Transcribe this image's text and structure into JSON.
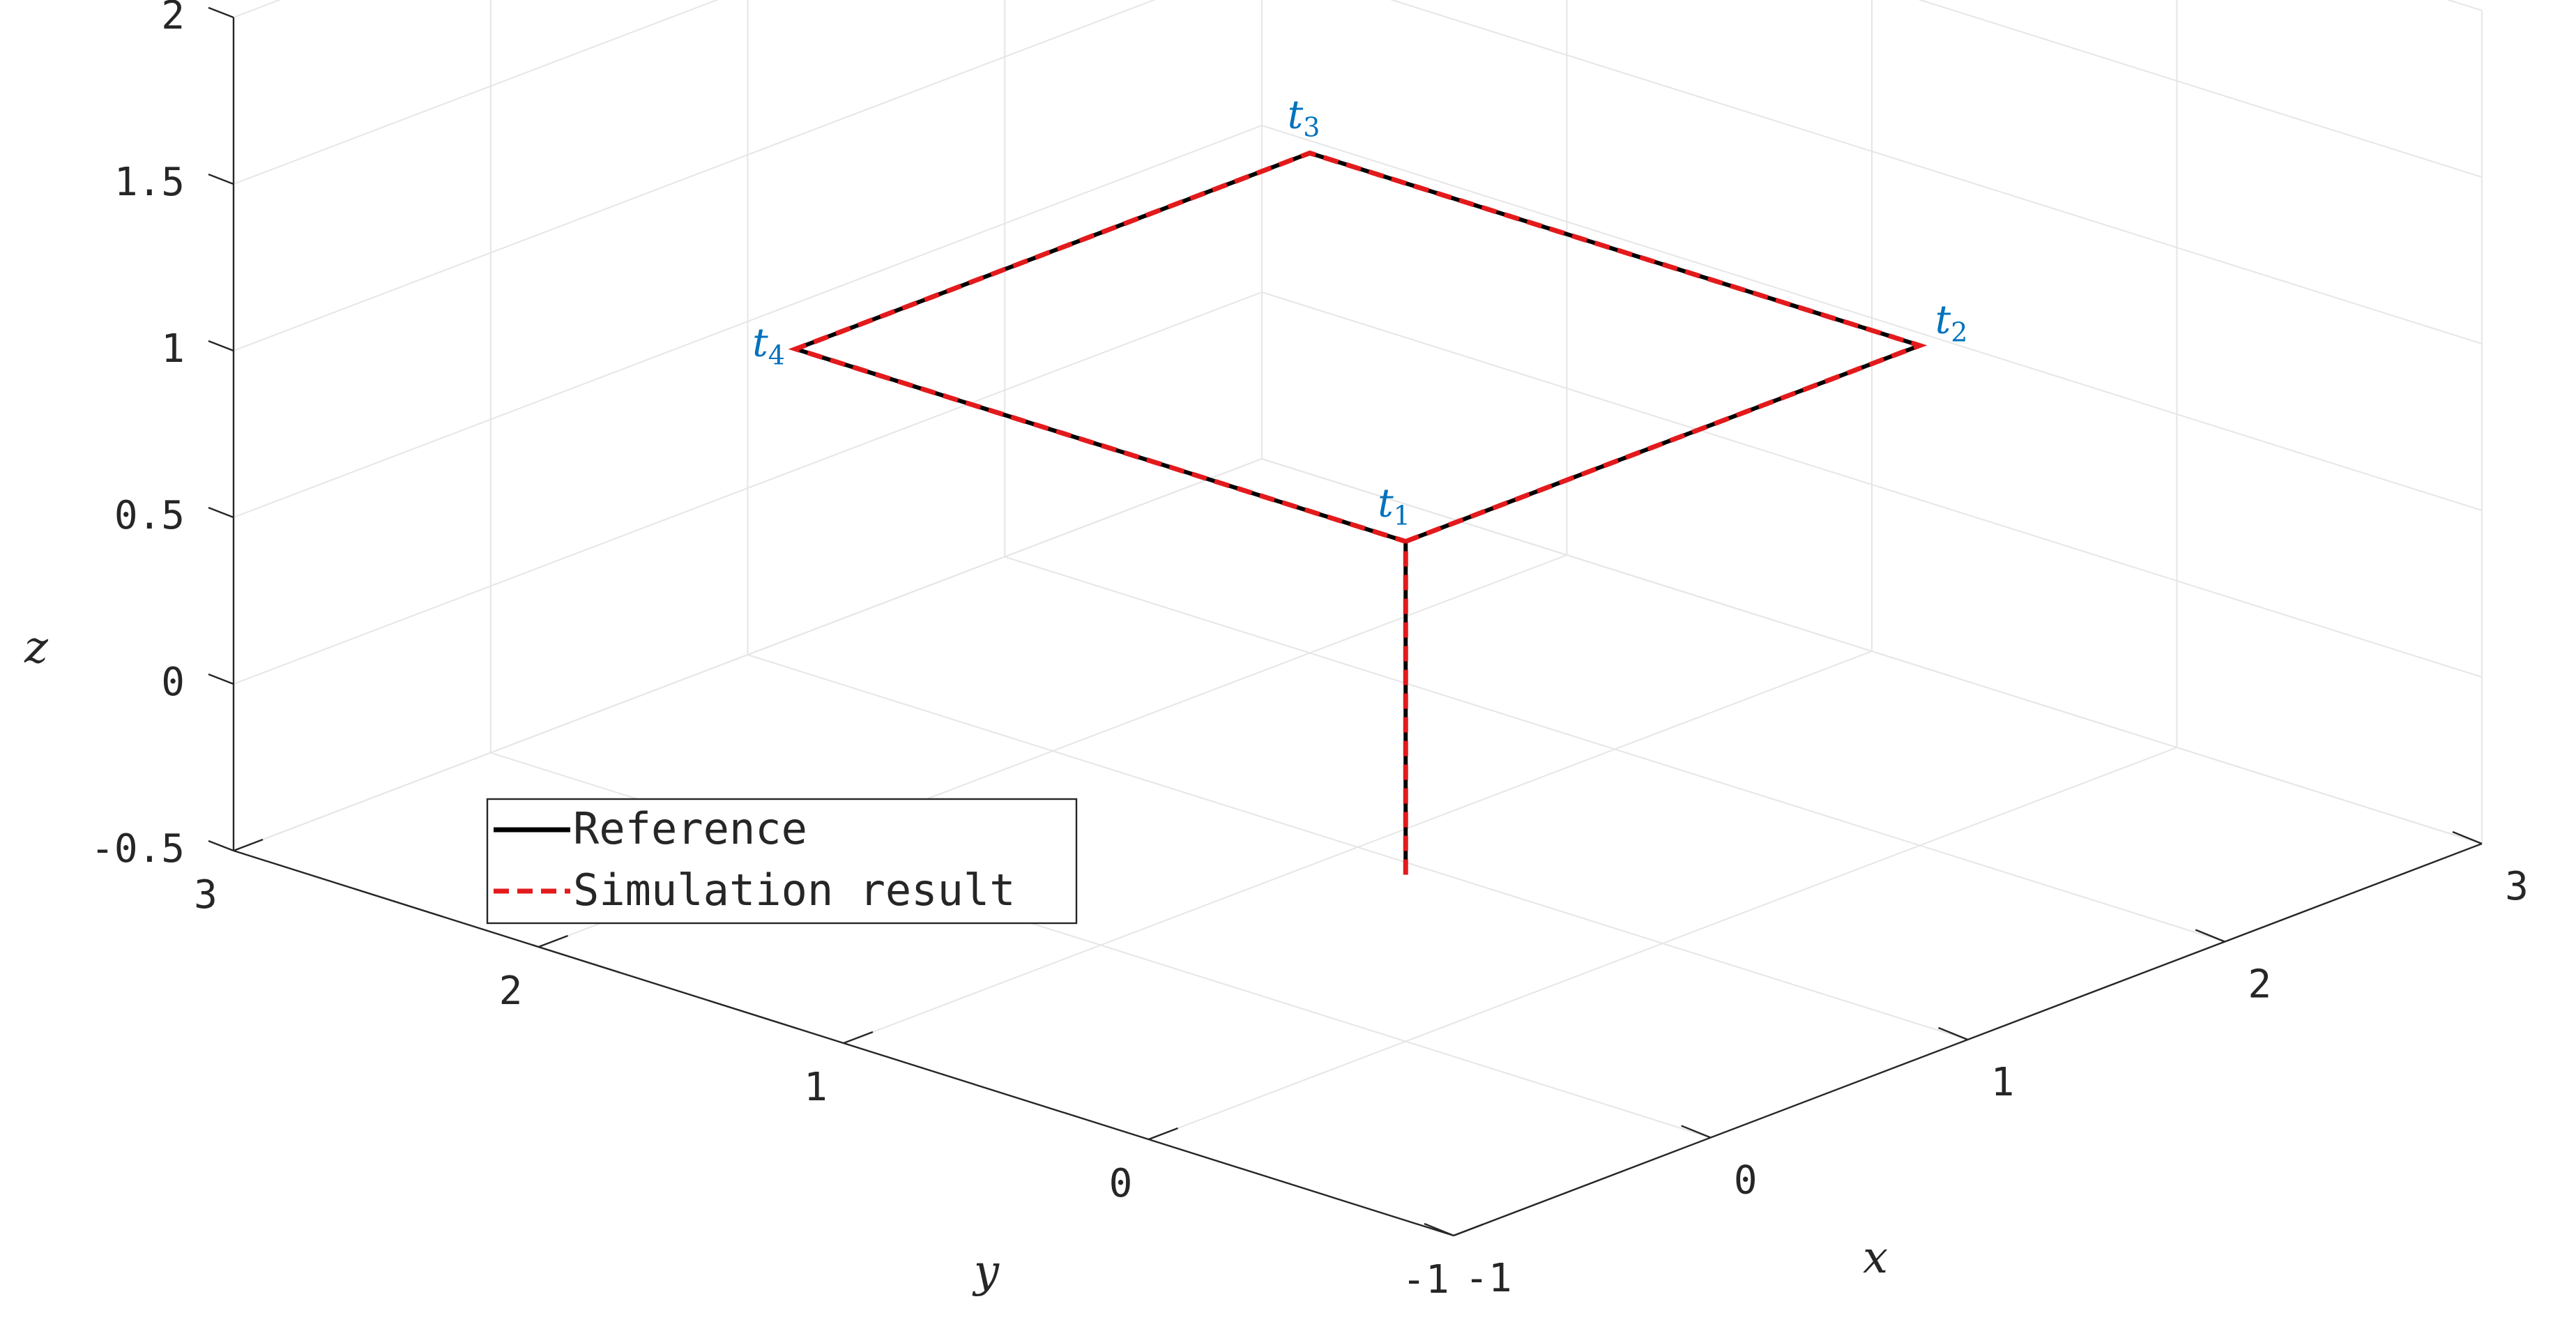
{
  "chart_data": {
    "type": "line",
    "title": "",
    "xlabel": "x",
    "ylabel": "y",
    "zlabel": "z",
    "xlim": [
      -1,
      3
    ],
    "ylim": [
      -1,
      3
    ],
    "zlim": [
      -0.5,
      2
    ],
    "xticks": [
      "-1",
      "0",
      "1",
      "2",
      "3"
    ],
    "yticks": [
      "-1",
      "0",
      "1",
      "2",
      "3"
    ],
    "zticks": [
      "-0.5",
      "0",
      "0.5",
      "1",
      "1.5",
      "2"
    ],
    "grid": true,
    "legend_position": "center-left",
    "series": [
      {
        "name": "Reference",
        "color": "#000000",
        "style": "solid",
        "points": [
          {
            "x": 0,
            "y": 0,
            "z": 0
          },
          {
            "x": 0,
            "y": 0,
            "z": 1
          },
          {
            "x": 2,
            "y": 0,
            "z": 1
          },
          {
            "x": 2,
            "y": 2,
            "z": 1
          },
          {
            "x": 0,
            "y": 2,
            "z": 1
          },
          {
            "x": 0,
            "y": 0,
            "z": 1
          }
        ]
      },
      {
        "name": "Simulation result",
        "color": "#e31a1c",
        "style": "dashed",
        "points": [
          {
            "x": 0,
            "y": 0,
            "z": 0
          },
          {
            "x": 0,
            "y": 0,
            "z": 1
          },
          {
            "x": 2,
            "y": 0,
            "z": 1
          },
          {
            "x": 2,
            "y": 2,
            "z": 1
          },
          {
            "x": 0,
            "y": 2,
            "z": 1
          },
          {
            "x": 0,
            "y": 0,
            "z": 1
          }
        ]
      }
    ],
    "annotations": [
      {
        "base": "t",
        "sub": "1",
        "x": 0,
        "y": 0,
        "z": 1
      },
      {
        "base": "t",
        "sub": "2",
        "x": 2,
        "y": 0,
        "z": 1
      },
      {
        "base": "t",
        "sub": "3",
        "x": 2,
        "y": 2,
        "z": 1
      },
      {
        "base": "t",
        "sub": "4",
        "x": 0,
        "y": 2,
        "z": 1
      }
    ]
  }
}
